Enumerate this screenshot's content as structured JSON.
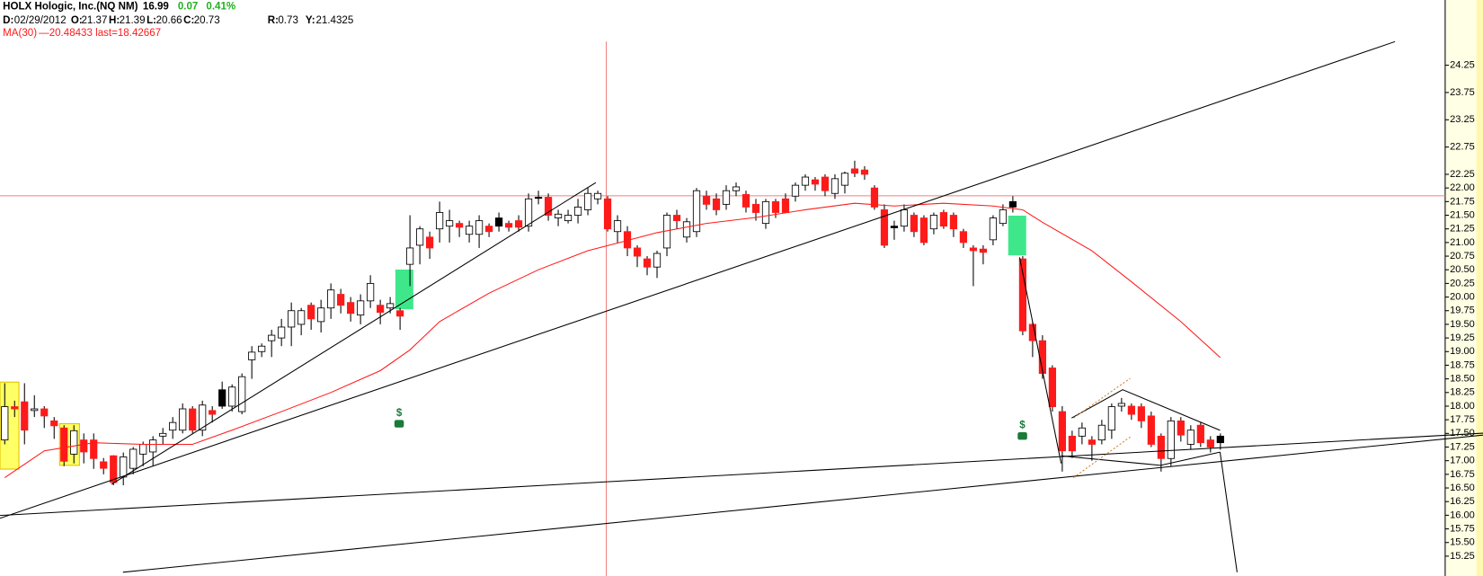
{
  "header": {
    "symbol": "HOLX Hologic, Inc.(NQ NM)",
    "last": "16.99",
    "change": "0.07",
    "change_pct": "0.41%",
    "date_label": "D:",
    "date": "02/29/2012",
    "open_label": "O:",
    "open": "21.37",
    "high_label": "H:",
    "high": "21.39",
    "low_label": "L:",
    "low": "20.66",
    "close_label": "C:",
    "close": "20.73",
    "r_label": "R:",
    "r": "0.73",
    "y_label": "Y:",
    "y": "21.4325",
    "ma_readout": "—20.48433 last=18.42667"
  },
  "chart_data": {
    "type": "candlestick",
    "up_color": "#ffffff",
    "down_color": "#ff1a1a",
    "black_color": "#000000",
    "wick_color": "#000000",
    "ylim": [
      14.886,
      25.446
    ],
    "yticks": [
      24.25,
      23.75,
      23.25,
      22.75,
      22.25,
      {
        "value": 22,
        "label": "22.00"
      },
      21.75,
      {
        "value": 21.5,
        "label": "21.50"
      },
      21.25,
      {
        "value": 21,
        "label": "21.00"
      },
      20.75,
      {
        "value": 20.5,
        "label": "20.50"
      },
      20.25,
      {
        "value": 20,
        "label": "20.00"
      },
      19.75,
      {
        "value": 19.5,
        "label": "19.50"
      },
      19.25,
      {
        "value": 19,
        "label": "19.00"
      },
      18.75,
      {
        "value": 18.5,
        "label": "18.50"
      },
      18.25,
      {
        "value": 18,
        "label": "18.00"
      },
      17.75,
      {
        "value": 17.5,
        "label": "17.50"
      },
      17.25,
      {
        "value": 17,
        "label": "17.00"
      },
      16.75,
      {
        "value": 16.5,
        "label": "16.50"
      },
      16.25,
      {
        "value": 16,
        "label": "16.00"
      },
      15.75,
      {
        "value": 15.5,
        "label": "15.50"
      },
      15.25
    ],
    "open": [
      17.38,
      17.99,
      18.08,
      17.92,
      17.95,
      17.73,
      17.6,
      17.12,
      17.38,
      17.38,
      16.98,
      17.09,
      16.7,
      16.86,
      17.12,
      17.16,
      17.45,
      17.56,
      17.56,
      17.95,
      17.56,
      17.92,
      18.3,
      18.0,
      17.9,
      18.85,
      19.0,
      19.2,
      19.25,
      19.45,
      19.5,
      19.85,
      19.55,
      19.8,
      20.05,
      19.9,
      19.67,
      19.93,
      19.85,
      19.8,
      19.75,
      20.6,
      20.95,
      21.1,
      21.25,
      21.3,
      21.35,
      21.15,
      21.15,
      21.3,
      21.45,
      21.35,
      21.4,
      21.3,
      21.83,
      21.83,
      21.45,
      21.4,
      21.5,
      21.6,
      21.8,
      21.8,
      21.2,
      21.2,
      20.9,
      20.7,
      20.55,
      20.9,
      21.5,
      21.1,
      21.2,
      21.85,
      21.8,
      21.7,
      21.95,
      21.88,
      21.7,
      21.35,
      21.75,
      21.8,
      21.85,
      22.05,
      22.15,
      22.2,
      21.9,
      22.05,
      22.35,
      22.33,
      22.0,
      21.6,
      21.3,
      21.3,
      21.5,
      21.45,
      21.25,
      21.55,
      21.5,
      21.2,
      20.9,
      20.88,
      21.05,
      21.35,
      21.75,
      20.7,
      19.5,
      19.2,
      18.7,
      17.9,
      17.45,
      17.45,
      17.38,
      17.38,
      17.56,
      18.0,
      18.0,
      17.99,
      17.82,
      17.45,
      17.04,
      17.73,
      17.3,
      17.65,
      17.38,
      17.45
    ],
    "high": [
      18.42,
      18.1,
      18.42,
      18.2,
      18.0,
      17.8,
      17.65,
      17.65,
      17.5,
      17.5,
      17.05,
      17.1,
      17.15,
      17.25,
      17.35,
      17.45,
      17.6,
      17.8,
      18.05,
      18.0,
      18.1,
      18.0,
      18.45,
      18.4,
      18.6,
      19.1,
      19.15,
      19.4,
      19.6,
      19.9,
      19.8,
      19.9,
      19.95,
      20.25,
      20.15,
      20.0,
      20.05,
      20.4,
      19.95,
      20.0,
      19.8,
      21.5,
      21.3,
      21.2,
      21.75,
      21.6,
      21.4,
      21.4,
      21.5,
      21.35,
      21.55,
      21.4,
      21.5,
      21.9,
      21.95,
      21.9,
      21.6,
      21.6,
      21.8,
      22.0,
      21.95,
      21.85,
      21.5,
      21.3,
      20.95,
      20.75,
      20.85,
      21.55,
      21.6,
      21.45,
      22.0,
      21.95,
      21.9,
      22.05,
      22.1,
      21.95,
      21.8,
      21.8,
      21.8,
      21.9,
      22.1,
      22.25,
      22.2,
      22.25,
      22.25,
      22.3,
      22.5,
      22.4,
      22.05,
      21.7,
      21.4,
      21.7,
      21.55,
      21.5,
      21.55,
      21.6,
      21.55,
      21.25,
      20.95,
      20.95,
      21.5,
      21.7,
      21.85,
      20.75,
      19.55,
      19.3,
      18.75,
      18.0,
      17.55,
      17.7,
      17.45,
      17.75,
      18.05,
      18.15,
      18.05,
      18.05,
      17.9,
      17.5,
      17.8,
      17.8,
      17.65,
      17.7,
      17.45,
      17.5
    ],
    "low": [
      17.3,
      17.8,
      17.3,
      17.8,
      17.6,
      17.4,
      16.9,
      16.95,
      16.95,
      16.85,
      16.75,
      16.55,
      16.55,
      16.75,
      16.9,
      16.9,
      17.3,
      17.4,
      17.5,
      17.5,
      17.45,
      17.7,
      17.95,
      17.9,
      17.85,
      18.5,
      18.9,
      18.9,
      19.1,
      19.1,
      19.3,
      19.4,
      19.35,
      19.6,
      19.7,
      19.55,
      19.5,
      19.8,
      19.5,
      19.7,
      19.4,
      20.2,
      20.6,
      20.7,
      21.0,
      21.0,
      21.1,
      21.0,
      20.9,
      21.1,
      21.2,
      21.2,
      21.2,
      21.2,
      21.7,
      21.4,
      21.3,
      21.35,
      21.35,
      21.5,
      21.7,
      21.2,
      21.0,
      20.75,
      20.55,
      20.4,
      20.35,
      20.75,
      21.25,
      21.0,
      21.1,
      21.6,
      21.5,
      21.6,
      21.85,
      21.55,
      21.4,
      21.25,
      21.45,
      21.55,
      21.75,
      21.95,
      21.95,
      21.85,
      21.8,
      21.9,
      22.2,
      22.15,
      21.6,
      20.9,
      21.05,
      21.2,
      21.1,
      20.95,
      21.15,
      21.25,
      21.1,
      20.9,
      20.2,
      20.6,
      20.95,
      21.3,
      21.55,
      19.3,
      18.9,
      18.5,
      17.9,
      16.8,
      17.05,
      17.3,
      17.0,
      17.3,
      17.4,
      17.9,
      17.75,
      17.6,
      17.25,
      16.8,
      16.9,
      17.35,
      17.2,
      17.25,
      17.15,
      17.2
    ],
    "close": [
      17.99,
      17.95,
      17.56,
      17.95,
      17.82,
      17.64,
      16.99,
      17.55,
      17.16,
      17.04,
      16.86,
      16.6,
      17.07,
      17.21,
      17.3,
      17.38,
      17.5,
      17.7,
      17.95,
      17.56,
      18.02,
      17.85,
      18.0,
      18.35,
      18.54,
      18.99,
      19.1,
      19.3,
      19.45,
      19.75,
      19.75,
      19.6,
      19.8,
      20.13,
      19.85,
      19.7,
      19.93,
      20.25,
      19.72,
      19.88,
      19.65,
      20.9,
      21.25,
      20.9,
      21.55,
      21.4,
      21.28,
      21.3,
      21.4,
      21.2,
      21.3,
      21.28,
      21.28,
      21.8,
      21.81,
      21.5,
      21.52,
      21.5,
      21.65,
      21.9,
      21.9,
      21.25,
      21.4,
      20.9,
      20.75,
      20.55,
      20.8,
      21.5,
      21.4,
      21.38,
      21.95,
      21.7,
      21.6,
      21.95,
      22.02,
      21.65,
      21.55,
      21.75,
      21.55,
      21.55,
      22.05,
      22.2,
      22.07,
      21.95,
      22.17,
      22.27,
      22.27,
      22.25,
      21.65,
      20.95,
      21.27,
      21.6,
      21.2,
      21.0,
      21.5,
      21.3,
      21.25,
      21.0,
      20.85,
      20.82,
      21.45,
      21.6,
      21.65,
      19.38,
      19.2,
      18.6,
      17.99,
      17.18,
      17.18,
      17.6,
      17.3,
      17.65,
      17.99,
      18.05,
      17.85,
      17.73,
      17.3,
      17.04,
      17.73,
      17.47,
      17.56,
      17.33,
      17.25,
      17.33
    ],
    "overlays": [
      {
        "name": "MA(30)",
        "color": "#ff1a1a",
        "x": [
          0,
          4,
          9,
          14,
          19,
          23,
          28,
          33,
          38,
          41,
          44,
          49,
          54,
          59,
          62,
          66,
          71,
          76,
          81,
          86,
          90,
          95,
          100,
          103,
          105,
          110,
          114,
          119,
          123
        ],
        "values": [
          16.69,
          17.18,
          17.33,
          17.3,
          17.3,
          17.56,
          17.9,
          18.25,
          18.65,
          19.03,
          19.55,
          20.07,
          20.5,
          20.85,
          20.99,
          21.18,
          21.35,
          21.46,
          21.6,
          21.72,
          21.67,
          21.72,
          21.67,
          21.6,
          21.37,
          20.85,
          20.28,
          19.55,
          18.89
        ]
      }
    ],
    "dividend_markers": [
      "$",
      "$"
    ]
  }
}
